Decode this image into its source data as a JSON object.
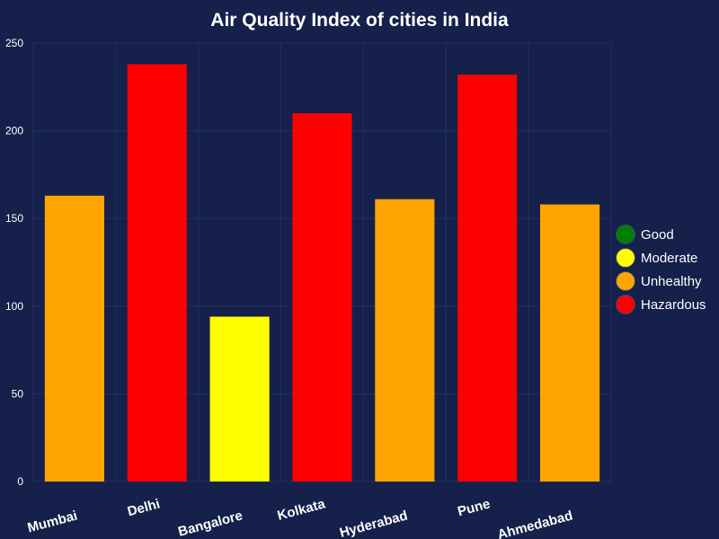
{
  "chart_data": {
    "type": "bar",
    "title": "Air Quality Index of cities in India",
    "xlabel": "",
    "ylabel": "",
    "categories": [
      "Mumbai",
      "Delhi",
      "Bangalore",
      "Kolkata",
      "Hyderabad",
      "Pune",
      "Ahmedabad"
    ],
    "values": [
      163,
      238,
      94,
      210,
      161,
      232,
      158
    ],
    "levels": [
      "Unhealthy",
      "Hazardous",
      "Moderate",
      "Hazardous",
      "Unhealthy",
      "Hazardous",
      "Unhealthy"
    ],
    "ylim": [
      0,
      250
    ],
    "yticks": [
      0,
      50,
      100,
      150,
      200,
      250
    ],
    "grid": true,
    "legend_position": "right",
    "legend": [
      {
        "label": "Good",
        "color": "#008000"
      },
      {
        "label": "Moderate",
        "color": "#ffff00"
      },
      {
        "label": "Unhealthy",
        "color": "#ffa500"
      },
      {
        "label": "Hazardous",
        "color": "#ff0000"
      }
    ],
    "background": "#15204b"
  }
}
